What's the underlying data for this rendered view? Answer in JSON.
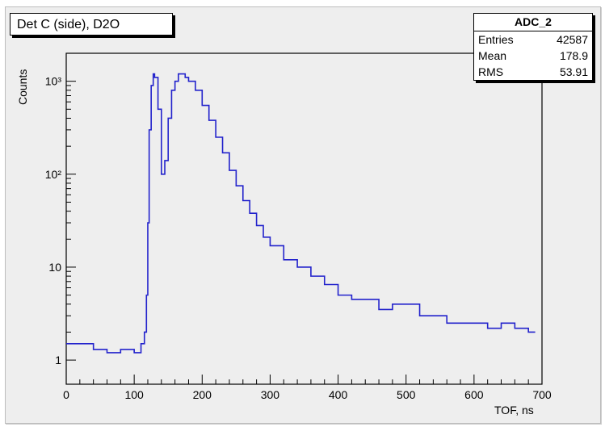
{
  "title_box": "Det C (side), D2O",
  "stats": {
    "name": "ADC_2",
    "rows": [
      {
        "label": "Entries",
        "value": "42587"
      },
      {
        "label": "Mean",
        "value": "178.9"
      },
      {
        "label": "RMS",
        "value": "53.91"
      }
    ]
  },
  "colors": {
    "line": "#2222cc",
    "frame": "#000000",
    "background": "#eeeeee"
  },
  "chart_data": {
    "type": "line",
    "title": "Det C (side), D2O",
    "xlabel": "TOF, ns",
    "ylabel": "Counts",
    "xlim": [
      0,
      700
    ],
    "ylim": [
      0.55,
      2000
    ],
    "yscale": "log",
    "xticks": [
      0,
      100,
      200,
      300,
      400,
      500,
      600,
      700
    ],
    "yticks": [
      {
        "value": 1,
        "label": "1"
      },
      {
        "value": 10,
        "label": "10"
      },
      {
        "value": 100,
        "label": "10²"
      },
      {
        "value": 1000,
        "label": "10³"
      }
    ],
    "series": [
      {
        "x": [
          0,
          20,
          40,
          60,
          80,
          100,
          110,
          115,
          118,
          120,
          122,
          125,
          128,
          130,
          135,
          140,
          145,
          150,
          155,
          160,
          165,
          170,
          175,
          180,
          190,
          200,
          210,
          220,
          230,
          240,
          250,
          260,
          270,
          280,
          290,
          300,
          320,
          340,
          360,
          380,
          400,
          420,
          440,
          460,
          480,
          500,
          520,
          540,
          560,
          580,
          600,
          620,
          640,
          660,
          680,
          690
        ],
        "y": [
          1.5,
          1.5,
          1.3,
          1.2,
          1.3,
          1.2,
          1.5,
          2,
          5,
          30,
          300,
          900,
          1200,
          1100,
          500,
          100,
          140,
          400,
          800,
          1000,
          1200,
          1200,
          1100,
          1000,
          800,
          550,
          380,
          250,
          170,
          110,
          75,
          52,
          38,
          28,
          21,
          17,
          12,
          10,
          8,
          6.5,
          5,
          4.5,
          4.5,
          3.5,
          4,
          4,
          3,
          3,
          2.5,
          2.5,
          2.5,
          2.2,
          2.5,
          2.2,
          2,
          2
        ]
      }
    ]
  }
}
